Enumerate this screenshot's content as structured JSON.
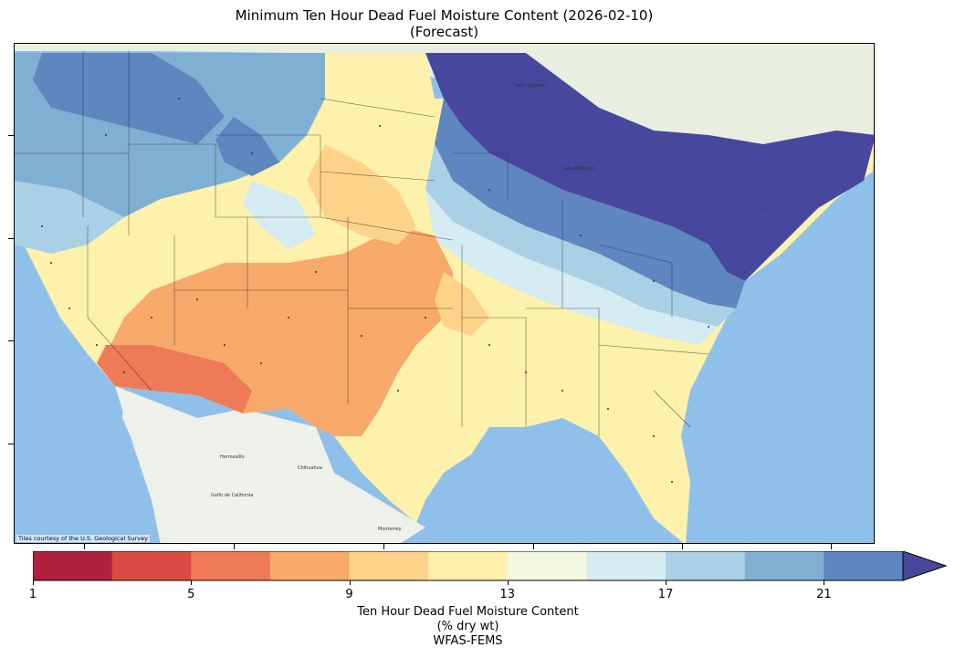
{
  "title": "Minimum Ten Hour Dead Fuel Moisture Content (2026-02-10)",
  "subtitle": "(Forecast)",
  "attribution": "Tiles courtesy of the U.S. Geological Survey",
  "colorbar": {
    "label_line1": "Ten Hour Dead Fuel Moisture Content",
    "label_line2": "(% dry wt)",
    "label_line3": "WFAS-FEMS",
    "ticks": [
      "1",
      "5",
      "9",
      "13",
      "17",
      "21"
    ],
    "bounds": [
      1,
      3,
      5,
      7,
      9,
      11,
      13,
      15,
      17,
      19,
      21,
      23
    ],
    "colors": [
      "#b2203f",
      "#d94b43",
      "#ef7a58",
      "#f7a96a",
      "#fdd38a",
      "#fef1ab",
      "#f2f9de",
      "#d4ebf2",
      "#a9d0e4",
      "#7fb0d3",
      "#5e86bf",
      "#46479d"
    ],
    "extend": "max"
  },
  "map_labels": {
    "gulf_of_california": "Golfo de California",
    "hermosillo": "Hermosillo",
    "chihuahua": "Chihuahua",
    "monterrey": "Monterrey",
    "lake_superior": "Lake Superior",
    "lake_michigan": "Lake Michigan"
  }
}
